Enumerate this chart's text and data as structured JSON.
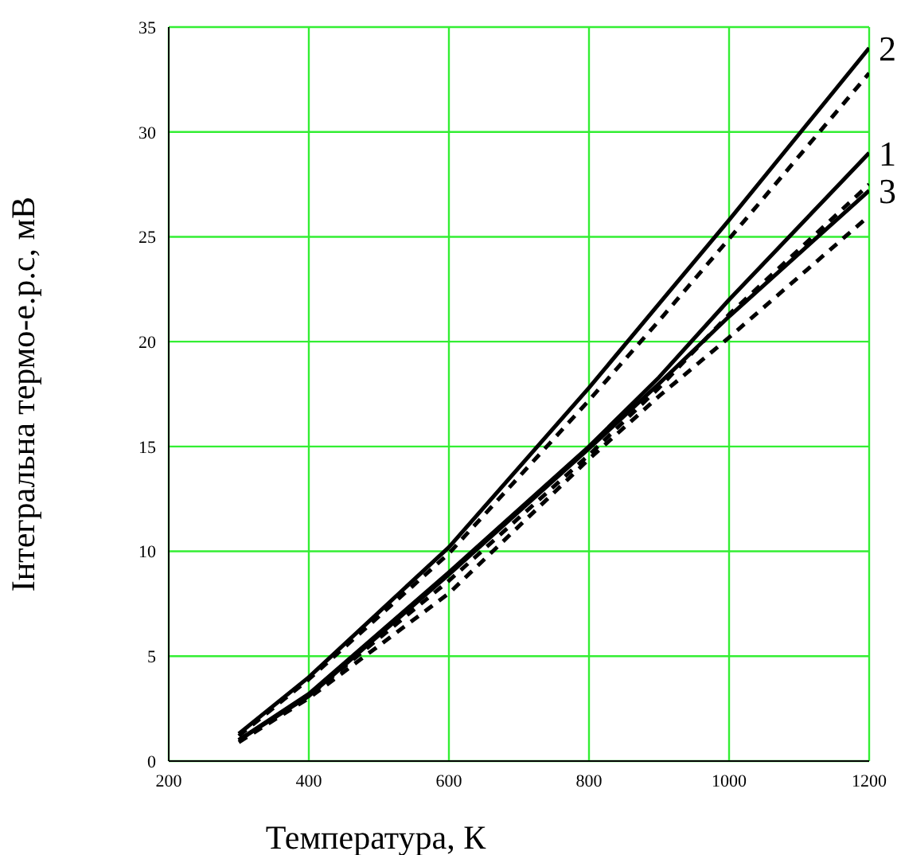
{
  "chart_data": {
    "type": "line",
    "xlabel": "Температура, К",
    "ylabel": "Інтегральна термо-е.р.с, мВ",
    "x": [
      300,
      400,
      600,
      800,
      900,
      1000,
      1200
    ],
    "xlim": [
      200,
      1200
    ],
    "xticks": [
      200,
      400,
      600,
      800,
      1000,
      1200
    ],
    "ylim": [
      0,
      35
    ],
    "yticks": [
      0,
      5,
      10,
      15,
      20,
      25,
      30,
      35
    ],
    "grid": true,
    "legend": false,
    "marker": "none",
    "series": [
      {
        "name": "2",
        "color": "#000000",
        "line_style": "solid",
        "values": [
          1.3,
          4.0,
          10.2,
          17.8,
          21.8,
          25.8,
          34.0
        ]
      },
      {
        "color": "#000000",
        "line_style": "dashed",
        "values": [
          1.2,
          3.9,
          9.9,
          17.2,
          21.0,
          24.9,
          32.8
        ]
      },
      {
        "name": "1",
        "color": "#000000",
        "line_style": "solid",
        "values": [
          1.0,
          3.2,
          9.0,
          15.0,
          18.3,
          22.0,
          29.0
        ]
      },
      {
        "color": "#000000",
        "line_style": "dashed",
        "values": [
          1.0,
          3.1,
          8.6,
          14.6,
          17.8,
          21.3,
          27.5
        ]
      },
      {
        "name": "3",
        "color": "#000000",
        "line_style": "solid",
        "values": [
          1.0,
          3.1,
          8.9,
          14.9,
          18.0,
          21.2,
          27.2
        ]
      },
      {
        "color": "#000000",
        "line_style": "dashed",
        "values": [
          0.9,
          3.0,
          8.0,
          14.4,
          17.4,
          20.2,
          26.0
        ]
      }
    ]
  }
}
